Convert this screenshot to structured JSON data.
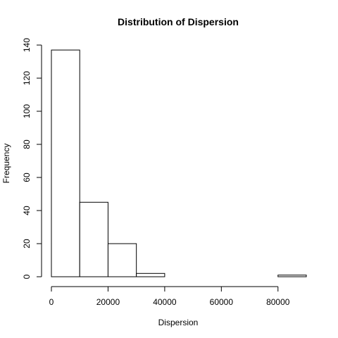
{
  "chart_data": {
    "type": "bar",
    "title": "Distribution of Dispersion",
    "xlabel": "Dispersion",
    "ylabel": "Frequency",
    "bins": [
      {
        "start": 0,
        "end": 10000,
        "count": 137
      },
      {
        "start": 10000,
        "end": 20000,
        "count": 45
      },
      {
        "start": 20000,
        "end": 30000,
        "count": 20
      },
      {
        "start": 30000,
        "end": 40000,
        "count": 2
      },
      {
        "start": 40000,
        "end": 50000,
        "count": 0
      },
      {
        "start": 50000,
        "end": 60000,
        "count": 0
      },
      {
        "start": 60000,
        "end": 70000,
        "count": 0
      },
      {
        "start": 70000,
        "end": 80000,
        "count": 0
      },
      {
        "start": 80000,
        "end": 90000,
        "count": 1
      }
    ],
    "x_ticks": [
      0,
      20000,
      40000,
      60000,
      80000
    ],
    "y_ticks": [
      0,
      20,
      40,
      60,
      80,
      100,
      120,
      140
    ],
    "xlim": [
      0,
      90000
    ],
    "ylim": [
      0,
      140
    ],
    "grid": false,
    "bar_fill": "#ffffff",
    "bar_stroke": "#000000"
  }
}
